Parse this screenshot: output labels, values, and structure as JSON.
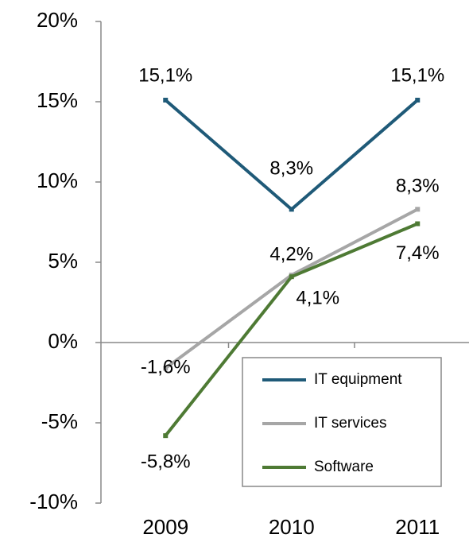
{
  "chart_data": {
    "type": "line",
    "categories": [
      "2009",
      "2010",
      "2011"
    ],
    "series": [
      {
        "name": "IT equipment",
        "color": "#1f5a78",
        "values": [
          15.1,
          8.3,
          15.1
        ],
        "value_labels": [
          "15,1%",
          "8,3%",
          "15,1%"
        ]
      },
      {
        "name": "IT services",
        "color": "#a6a6a6",
        "values": [
          -1.6,
          4.2,
          8.3
        ],
        "value_labels": [
          "-1,6%",
          "4,2%",
          "8,3%"
        ]
      },
      {
        "name": "Software",
        "color": "#4e7a34",
        "values": [
          -5.8,
          4.1,
          7.4
        ],
        "value_labels": [
          "-5,8%",
          "4,1%",
          "7,4%"
        ]
      }
    ],
    "ylim": [
      -10,
      20
    ],
    "yticks": [
      {
        "value": -10,
        "label": "-10%"
      },
      {
        "value": -5,
        "label": "-5%"
      },
      {
        "value": 0,
        "label": "0%"
      },
      {
        "value": 5,
        "label": "5%"
      },
      {
        "value": 10,
        "label": "10%"
      },
      {
        "value": 15,
        "label": "15%"
      },
      {
        "value": 20,
        "label": "20%"
      }
    ],
    "legend": "lower right"
  }
}
